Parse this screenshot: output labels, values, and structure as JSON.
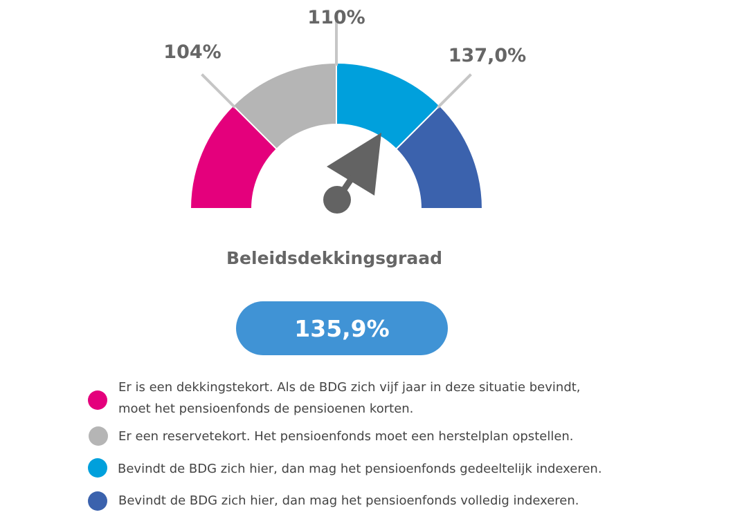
{
  "colors": {
    "magenta": "#e4007c",
    "grey": "#b5b5b5",
    "cyan": "#00a0dc",
    "blue": "#3b62ad",
    "needle": "#636363",
    "tick_line": "#c6c6c6",
    "label_text": "#666666",
    "pill": "#4093d5"
  },
  "chart_data": {
    "type": "gauge",
    "title": "Beleidsdekkingsgraad",
    "value": 135.9,
    "value_label": "135,9%",
    "range": [
      100,
      144
    ],
    "bands": [
      {
        "from": 100,
        "to": 104,
        "color": "#e4007c"
      },
      {
        "from": 104,
        "to": 110,
        "color": "#b5b5b5"
      },
      {
        "from": 110,
        "to": 137,
        "color": "#00a0dc"
      },
      {
        "from": 137,
        "to": 144,
        "color": "#3b62ad"
      }
    ],
    "thresholds": [
      {
        "label": "104%"
      },
      {
        "label": "110%"
      },
      {
        "label": "137,0%"
      }
    ]
  },
  "legend": [
    {
      "color": "#e4007c",
      "lines": [
        "Er is een dekkingstekort. Als de BDG zich vijf jaar in deze situatie bevindt,",
        "moet het pensioenfonds de pensioenen korten."
      ]
    },
    {
      "color": "#b5b5b5",
      "lines": [
        "Er een reservetekort. Het pensioenfonds moet een herstelplan opstellen."
      ]
    },
    {
      "color": "#00a0dc",
      "lines": [
        "Bevindt de BDG zich hier, dan mag het pensioenfonds gedeeltelijk indexeren."
      ]
    },
    {
      "color": "#3b62ad",
      "lines": [
        "Bevindt de BDG zich hier, dan mag het pensioenfonds volledig indexeren."
      ]
    }
  ]
}
